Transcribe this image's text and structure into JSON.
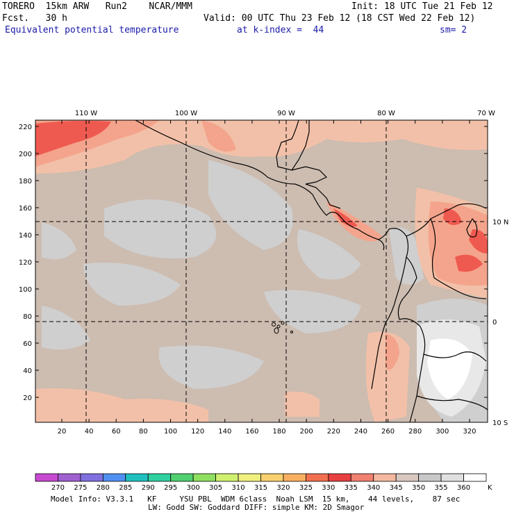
{
  "header": {
    "model": "TORERO  15km ARW   Run2    NCAR/MMM",
    "init": "Init: 18 UTC Tue 21 Feb 12",
    "fcst": "Fcst.   30 h",
    "valid": "Valid: 00 UTC Thu 23 Feb 12 (18 CST Wed 22 Feb 12)",
    "field": "Equivalent potential temperature",
    "level": "at k-index =  44",
    "smooth": "sm= 2"
  },
  "map": {
    "top_lon_labels": [
      "110 W",
      "100 W",
      "90 W",
      "80 W",
      "70 W"
    ],
    "right_lat_labels": [
      "10 N",
      "0",
      "10 S"
    ],
    "y_ticks": [
      "220",
      "200",
      "180",
      "160",
      "140",
      "120",
      "100",
      "80",
      "60",
      "40",
      "20"
    ],
    "x_ticks": [
      "20",
      "40",
      "60",
      "80",
      "100",
      "120",
      "140",
      "160",
      "180",
      "200",
      "220",
      "240",
      "260",
      "280",
      "300",
      "320"
    ],
    "colors": {
      "background_field": "#cdbcb0",
      "cool_patches": "#cfcfcf",
      "warm_340": "#f2c0a8",
      "warm_335": "#f4a48c",
      "hot_330": "#ef5a50",
      "very_hot_325": "#f06a5a",
      "pale_355": "#e8e8e8",
      "white_360": "#ffffff",
      "coastline": "#000000"
    }
  },
  "colorbar": {
    "labels": [
      "270",
      "275",
      "280",
      "285",
      "290",
      "295",
      "300",
      "305",
      "310",
      "315",
      "320",
      "325",
      "330",
      "335",
      "340",
      "345",
      "350",
      "355",
      "360"
    ],
    "unit": "K",
    "colors": [
      "#c84ad0",
      "#a060d0",
      "#8070e0",
      "#5090f0",
      "#20c0c0",
      "#30d0a0",
      "#50d070",
      "#90e060",
      "#d0f070",
      "#f0f080",
      "#f8d070",
      "#f8b060",
      "#f07050",
      "#e84040",
      "#f08070",
      "#f4b8a0",
      "#d8c8c0",
      "#c8c8c8",
      "#e0e0e0",
      "#ffffff"
    ]
  },
  "footer": {
    "line1": "Model Info: V3.3.1   KF     YSU PBL  WDM 6class  Noah LSM  15 km,    44 levels,    87 sec",
    "line2": "LW: Godd SW: Goddard DIFF: simple KM: 2D Smagor"
  }
}
